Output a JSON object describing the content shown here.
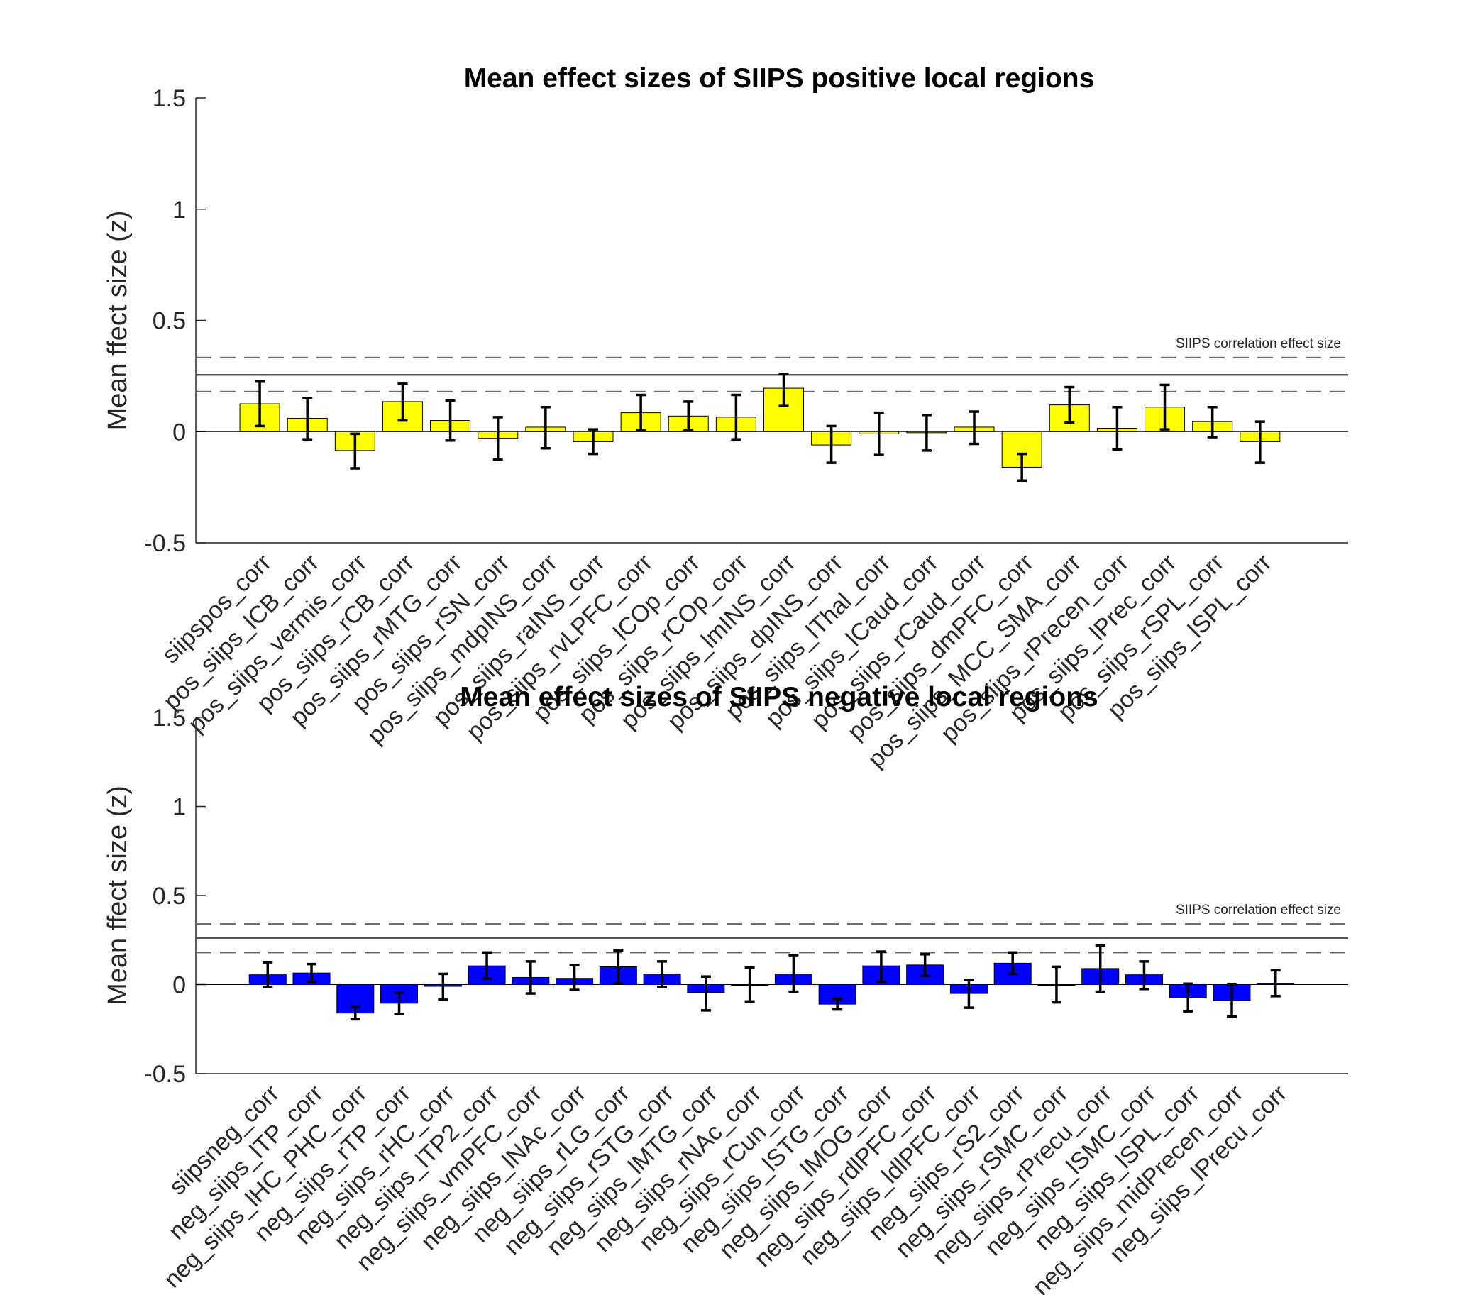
{
  "chart_data": [
    {
      "type": "bar",
      "title": "Mean effect sizes of SIIPS positive local regions",
      "ylabel": "Mean ffect size (z)",
      "ylim": [
        -0.5,
        1.5
      ],
      "yticks": [
        -0.5,
        0,
        0.5,
        1,
        1.5
      ],
      "ytick_labels": [
        "-0.5",
        "0",
        "0.5",
        "1",
        "1.5"
      ],
      "bar_color": "#ffff00",
      "reference": {
        "label": "SIIPS correlation effect size",
        "value": 0.255,
        "upper": 0.333,
        "lower": 0.18
      },
      "categories": [
        "siipspos_corr",
        "pos_siips_lCB_corr",
        "pos_siips_vermis_corr",
        "pos_siips_rCB_corr",
        "pos_siips_rMTG_corr",
        "pos_siips_rSN_corr",
        "pos_siips_mdpINS_corr",
        "pos_siips_raINS_corr",
        "pos_siips_rvLPFC_corr",
        "pos_siips_lCOp_corr",
        "pos_siips_rCOp_corr",
        "pos_siips_lmINS_corr",
        "pos_siips_dpINS_corr",
        "pos_siips_lThal_corr",
        "pos_siips_lCaud_corr",
        "pos_siips_rCaud_corr",
        "pos_siips_dmPFC_corr",
        "pos_siips_MCC_SMA_corr",
        "pos_siips_rPrecen_corr",
        "pos_siips_lPrec_corr",
        "pos_siips_rSPL_corr",
        "pos_siips_lSPL_corr"
      ],
      "tick_labels": [
        "siipspos_corr",
        "pos_siips_lCB_corr",
        "pos_siips_vermis_corr",
        "pos_siips_rCB_corr",
        "pos_siips_rMTG_corr",
        "pos_siips_rSN_corr",
        "pos_siips_mdpINS_corr",
        "pos_siips_raINS_corr",
        "pos_siips_rvLPFC_corr",
        "pos_siips_lCOp_corr",
        "pos_siips_rCOp_corr",
        "pos_siips_lmINS_corr",
        "pos_siips_dpINS_corr",
        "pos_siips_lThal_corr",
        "pos_siips_lCaud_corr",
        "pos_siips_rCaud_corr",
        "pos_siips_dmPFC_corr",
        "pos_siips_MCC_SMA_corr",
        "pos_siips_rPrecen_corr",
        "pos_siips_lPrec_corr",
        "pos_siips_rSPL_corr",
        "pos_siips_lSPL_corr"
      ],
      "values": [
        0.125,
        0.06,
        -0.085,
        0.135,
        0.05,
        -0.03,
        0.02,
        -0.045,
        0.085,
        0.07,
        0.065,
        0.195,
        -0.06,
        -0.01,
        -0.005,
        0.02,
        -0.16,
        0.12,
        0.015,
        0.11,
        0.045,
        -0.045
      ],
      "err_low": [
        0.025,
        -0.035,
        -0.165,
        0.05,
        -0.04,
        -0.125,
        -0.075,
        -0.1,
        0.005,
        0.005,
        -0.035,
        0.115,
        -0.14,
        -0.105,
        -0.085,
        -0.055,
        -0.22,
        0.04,
        -0.08,
        0.01,
        -0.025,
        -0.14
      ],
      "err_high": [
        0.225,
        0.15,
        -0.01,
        0.215,
        0.14,
        0.065,
        0.11,
        0.01,
        0.165,
        0.135,
        0.165,
        0.26,
        0.025,
        0.085,
        0.075,
        0.09,
        -0.1,
        0.2,
        0.11,
        0.21,
        0.11,
        0.045
      ]
    },
    {
      "type": "bar",
      "title": "Mean effect sizes of SIIPS negative local regions",
      "ylabel": "Mean ffect size (z)",
      "ylim": [
        -0.5,
        1.5
      ],
      "yticks": [
        -0.5,
        0,
        0.5,
        1,
        1.5
      ],
      "ytick_labels": [
        "-0.5",
        "0",
        "0.5",
        "1",
        "1.5"
      ],
      "bar_color": "#0000ff",
      "reference": {
        "label": "SIIPS correlation effect size",
        "value": 0.26,
        "upper": 0.34,
        "lower": 0.18
      },
      "categories": [
        "siipsneg_corr",
        "neg_siips_lTP_corr",
        "neg_siips_lHC_PHC_corr",
        "neg_siips_rTP_corr",
        "neg_siips_rHC_corr",
        "neg_siips_lTP2_corr",
        "neg_siips_vmPFC_corr",
        "neg_siips_lNAc_corr",
        "neg_siips_rLG_corr",
        "neg_siips_rSTG_corr",
        "neg_siips_lMTG_corr",
        "neg_siips_rNAc_corr",
        "neg_siips_rCun_corr",
        "neg_siips_lSTG_corr",
        "neg_siips_lMOG_corr",
        "neg_siips_rdlPFC_corr",
        "neg_siips_ldlPFC_corr",
        "neg_siips_rS2_corr",
        "neg_siips_rSMC_corr",
        "neg_siips_rPrecu_corr",
        "neg_siips_lSMC_corr",
        "neg_siips_lSPL_corr",
        "neg_siips_midPrecen_corr",
        "neg_siips_lPrecu_corr"
      ],
      "tick_labels": [
        "siipsneg_corr",
        "neg_siips_lTP_corr",
        "neg_siips_lHC_PHC_corr",
        "neg_siips_rTP_corr",
        "neg_siips_rHC_corr",
        "neg_siips_lTP2_corr",
        "neg_siips_vmPFC_corr",
        "neg_siips_lNAc_corr",
        "neg_siips_rLG_corr",
        "neg_siips_rSTG_corr",
        "neg_siips_lMTG_corr",
        "neg_siips_rNAc_corr",
        "neg_siips_rCun_corr",
        "neg_siips_lSTG_corr",
        "neg_siips_lMOG_corr",
        "neg_siips_rdlPFC_corr",
        "neg_siips_ldlPFC_corr",
        "neg_siips_rS2_corr",
        "neg_siips_rSMC_corr",
        "neg_siips_rPrecu_corr",
        "neg_siips_lSMC_corr",
        "neg_siips_lSPL_corr",
        "neg_siips_midPrecen_corr",
        "neg_siips_lPrecu_corr"
      ],
      "values": [
        0.055,
        0.065,
        -0.16,
        -0.105,
        -0.01,
        0.105,
        0.04,
        0.035,
        0.1,
        0.06,
        -0.045,
        0.0,
        0.06,
        -0.11,
        0.105,
        0.11,
        -0.05,
        0.12,
        0.0,
        0.09,
        0.055,
        -0.075,
        -0.09,
        0.005
      ],
      "err_low": [
        -0.015,
        0.015,
        -0.195,
        -0.165,
        -0.085,
        0.035,
        -0.05,
        -0.03,
        0.005,
        -0.015,
        -0.145,
        -0.095,
        -0.04,
        -0.14,
        0.015,
        0.05,
        -0.13,
        0.06,
        -0.1,
        -0.04,
        -0.025,
        -0.15,
        -0.18,
        -0.065
      ],
      "err_high": [
        0.125,
        0.115,
        -0.125,
        -0.045,
        0.06,
        0.18,
        0.13,
        0.11,
        0.19,
        0.13,
        0.045,
        0.095,
        0.165,
        -0.08,
        0.185,
        0.17,
        0.025,
        0.18,
        0.1,
        0.22,
        0.13,
        0.005,
        0.0,
        0.08
      ]
    }
  ]
}
